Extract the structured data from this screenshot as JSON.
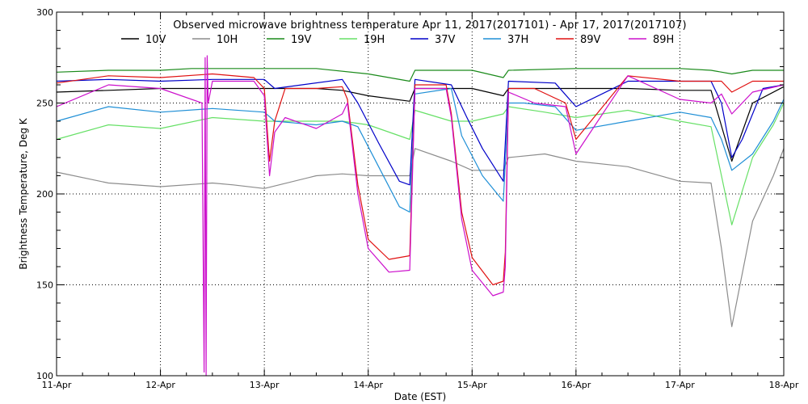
{
  "chart_data": {
    "type": "line",
    "title": "Observed microwave brightness temperature Apr 11, 2017(2017101) - Apr 17, 2017(2017107)",
    "xlabel": "Date (EST)",
    "ylabel": "Brightness Temperature, Deg K",
    "xlim": [
      0,
      7
    ],
    "ylim": [
      100,
      300
    ],
    "grid": true,
    "legend_position": "top",
    "x_ticks": [
      {
        "value": 0,
        "label": "11-Apr"
      },
      {
        "value": 1,
        "label": "12-Apr"
      },
      {
        "value": 2,
        "label": "13-Apr"
      },
      {
        "value": 3,
        "label": "14-Apr"
      },
      {
        "value": 4,
        "label": "15-Apr"
      },
      {
        "value": 5,
        "label": "16-Apr"
      },
      {
        "value": 6,
        "label": "17-Apr"
      },
      {
        "value": 7,
        "label": "18-Apr"
      }
    ],
    "y_ticks": [
      {
        "value": 100,
        "label": "100"
      },
      {
        "value": 150,
        "label": "150"
      },
      {
        "value": 200,
        "label": "200"
      },
      {
        "value": 250,
        "label": "250"
      },
      {
        "value": 300,
        "label": "300"
      }
    ],
    "series": [
      {
        "name": "10V",
        "color": "#000000",
        "x": [
          0,
          0.5,
          1,
          1.5,
          2,
          2.5,
          2.75,
          3,
          3.4,
          3.45,
          4,
          4.3,
          4.35,
          4.9,
          5.5,
          6,
          6.3,
          6.5,
          6.7,
          7
        ],
        "y": [
          256,
          257,
          258,
          258,
          258,
          258,
          257,
          254,
          251,
          258,
          258,
          254,
          258,
          258,
          258,
          257,
          257,
          218,
          250,
          259
        ]
      },
      {
        "name": "10H",
        "color": "#8c8c8c",
        "x": [
          0,
          0.5,
          1,
          1.5,
          1.7,
          2,
          2.5,
          2.75,
          3,
          3.35,
          3.4,
          3.45,
          3.8,
          4,
          4.3,
          4.35,
          4.7,
          5,
          5.5,
          6,
          6.3,
          6.4,
          6.5,
          6.7,
          6.9,
          7
        ],
        "y": [
          212,
          206,
          204,
          206,
          205,
          203,
          210,
          211,
          210,
          210,
          210,
          225,
          218,
          213,
          213,
          220,
          222,
          218,
          215,
          207,
          206,
          170,
          127,
          185,
          210,
          225
        ]
      },
      {
        "name": "19V",
        "color": "#1a8a1a",
        "x": [
          0,
          0.5,
          1,
          1.3,
          2,
          2.5,
          3,
          3.4,
          3.45,
          4,
          4.3,
          4.35,
          5,
          5.5,
          6,
          6.3,
          6.5,
          6.7,
          7
        ],
        "y": [
          267,
          268,
          268,
          269,
          269,
          269,
          266,
          262,
          268,
          268,
          264,
          268,
          269,
          269,
          269,
          268,
          266,
          268,
          268
        ]
      },
      {
        "name": "19H",
        "color": "#66e066",
        "x": [
          0,
          0.5,
          1,
          1.5,
          2,
          2.5,
          2.75,
          3,
          3.4,
          3.45,
          3.8,
          4,
          4.3,
          4.35,
          4.7,
          5,
          5.5,
          6,
          6.3,
          6.4,
          6.5,
          6.7,
          6.9,
          7
        ],
        "y": [
          230,
          238,
          236,
          242,
          240,
          240,
          240,
          238,
          230,
          246,
          240,
          240,
          244,
          248,
          245,
          242,
          246,
          240,
          237,
          210,
          183,
          220,
          238,
          250
        ]
      },
      {
        "name": "37V",
        "color": "#0000c8",
        "x": [
          0,
          0.5,
          1,
          1.5,
          2,
          2.1,
          2.75,
          2.9,
          3.1,
          3.3,
          3.4,
          3.45,
          3.8,
          3.95,
          4.1,
          4.3,
          4.35,
          4.8,
          5,
          5.5,
          6,
          6.3,
          6.4,
          6.5,
          6.6,
          6.8,
          7
        ],
        "y": [
          262,
          263,
          262,
          263,
          263,
          258,
          263,
          250,
          228,
          207,
          205,
          263,
          260,
          242,
          225,
          207,
          262,
          261,
          248,
          262,
          262,
          262,
          250,
          220,
          230,
          258,
          260
        ]
      },
      {
        "name": "37H",
        "color": "#1f8fd6",
        "x": [
          0,
          0.5,
          1,
          1.5,
          2,
          2.1,
          2.5,
          2.75,
          2.9,
          3.1,
          3.3,
          3.4,
          3.45,
          3.8,
          3.9,
          4.1,
          4.3,
          4.35,
          4.5,
          4.8,
          5,
          5.5,
          6,
          6.3,
          6.4,
          6.5,
          6.7,
          6.9,
          7
        ],
        "y": [
          240,
          248,
          245,
          247,
          245,
          240,
          238,
          240,
          237,
          215,
          193,
          190,
          255,
          258,
          232,
          210,
          196,
          250,
          250,
          248,
          235,
          240,
          245,
          242,
          230,
          213,
          222,
          240,
          252
        ]
      },
      {
        "name": "89V",
        "color": "#e01010",
        "x": [
          0,
          0.5,
          1,
          1.5,
          1.9,
          2,
          2.05,
          2.1,
          2.2,
          2.5,
          2.75,
          2.8,
          2.9,
          3,
          3.2,
          3.4,
          3.45,
          3.75,
          3.8,
          3.9,
          4,
          4.2,
          4.3,
          4.32,
          4.35,
          4.6,
          4.9,
          5,
          5.5,
          6,
          6.3,
          6.4,
          6.5,
          6.7,
          7
        ],
        "y": [
          261,
          265,
          264,
          266,
          264,
          258,
          218,
          240,
          258,
          258,
          259,
          252,
          205,
          175,
          164,
          166,
          260,
          260,
          244,
          190,
          165,
          150,
          152,
          168,
          258,
          258,
          250,
          230,
          265,
          262,
          262,
          262,
          256,
          262,
          262
        ]
      },
      {
        "name": "89H",
        "color": "#cc10cc",
        "x": [
          0,
          0.5,
          1,
          1.4,
          1.42,
          1.43,
          1.44,
          1.45,
          1.46,
          1.5,
          1.9,
          2,
          2.05,
          2.1,
          2.2,
          2.5,
          2.75,
          2.8,
          2.9,
          3,
          3.2,
          3.4,
          3.45,
          3.75,
          3.8,
          3.9,
          4,
          4.2,
          4.3,
          4.32,
          4.35,
          4.6,
          4.9,
          5,
          5.5,
          6,
          6.3,
          6.4,
          6.5,
          6.7,
          7
        ],
        "y": [
          248,
          260,
          258,
          250,
          102,
          275,
          100,
          276,
          250,
          262,
          262,
          254,
          210,
          234,
          242,
          236,
          244,
          250,
          200,
          170,
          157,
          158,
          258,
          258,
          242,
          186,
          158,
          144,
          146,
          160,
          256,
          250,
          248,
          222,
          265,
          252,
          250,
          255,
          244,
          256,
          260
        ]
      }
    ]
  }
}
